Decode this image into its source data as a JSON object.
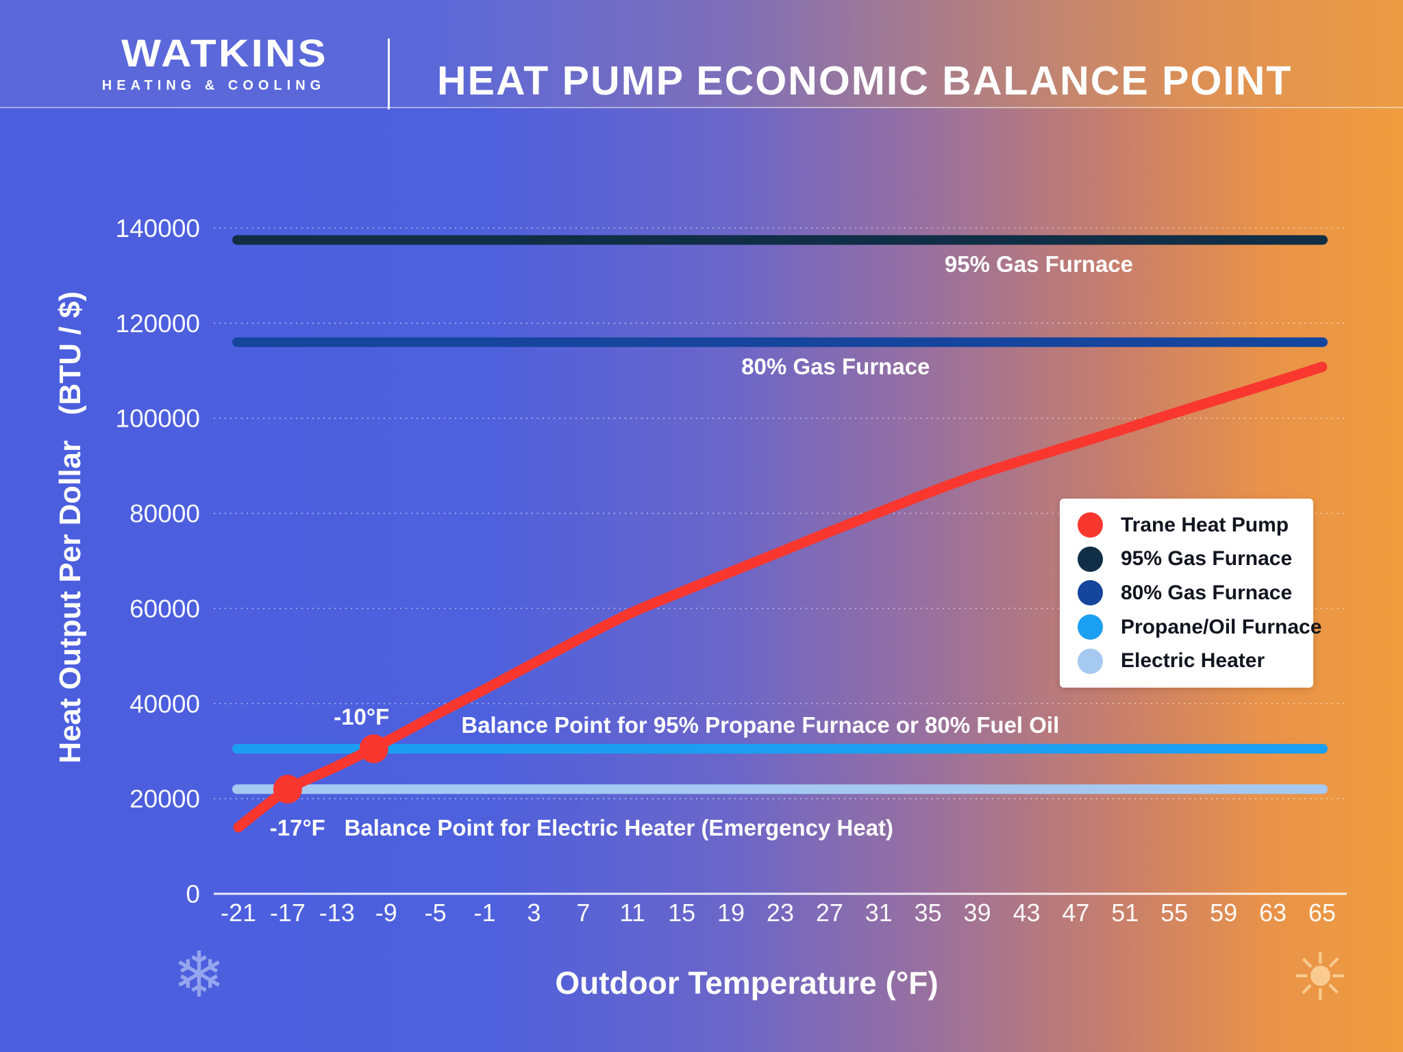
{
  "header": {
    "logo_name": "WATKINS",
    "logo_subtitle": "HEATING & COOLING",
    "title": "HEAT PUMP ECONOMIC BALANCE POINT"
  },
  "axes": {
    "y_title": "Heat Output Per Dollar   (BTU / $)",
    "x_title": "Outdoor Temperature (°F)",
    "y_ticks": [
      0,
      20000,
      40000,
      60000,
      80000,
      100000,
      120000,
      140000
    ],
    "x_ticks": [
      -21,
      -17,
      -13,
      -9,
      -5,
      -1,
      3,
      7,
      11,
      15,
      19,
      23,
      27,
      31,
      35,
      39,
      43,
      47,
      51,
      55,
      59,
      63,
      65
    ],
    "y_max": 140000
  },
  "chart_data": {
    "type": "line",
    "title": "Heat Pump Economic Balance Point",
    "xlabel": "Outdoor Temperature (°F)",
    "ylabel": "Heat Output Per Dollar (BTU / $)",
    "xlim": [
      -21,
      65
    ],
    "ylim": [
      0,
      140000
    ],
    "grid": "dotted horizontal",
    "legend_position": "right",
    "series": [
      {
        "name": "Trane Heat Pump",
        "color": "#f9372f",
        "kind": "curve",
        "points": [
          [
            -21,
            14000
          ],
          [
            -17,
            21900
          ],
          [
            -13,
            26800
          ],
          [
            -9,
            32000
          ],
          [
            -5,
            37600
          ],
          [
            -1,
            43000
          ],
          [
            3,
            48500
          ],
          [
            7,
            54000
          ],
          [
            11,
            59200
          ],
          [
            15,
            63500
          ],
          [
            19,
            67700
          ],
          [
            23,
            71900
          ],
          [
            27,
            76100
          ],
          [
            31,
            80200
          ],
          [
            35,
            84300
          ],
          [
            39,
            88100
          ],
          [
            43,
            91400
          ],
          [
            47,
            94600
          ],
          [
            51,
            97800
          ],
          [
            55,
            101100
          ],
          [
            59,
            104300
          ],
          [
            63,
            107500
          ],
          [
            65,
            110800
          ]
        ]
      },
      {
        "name": "95% Gas Furnace",
        "color": "#102e45",
        "kind": "constant",
        "value": 137500
      },
      {
        "name": "80% Gas Furnace",
        "color": "#15459c",
        "kind": "constant",
        "value": 116000
      },
      {
        "name": "Propane/Oil Furnace",
        "color": "#1b9ff2",
        "kind": "constant",
        "value": 30500
      },
      {
        "name": "Electric Heater",
        "color": "#a5c9f1",
        "kind": "constant",
        "value": 22000
      }
    ],
    "balance_points": [
      {
        "label": "-10°F",
        "temp": -10,
        "value": 30500
      },
      {
        "label": "-17°F",
        "temp": -17,
        "value": 22000
      }
    ]
  },
  "annotations": [
    {
      "text": "95% Gas Furnace",
      "x_temp": 44,
      "y_value": 132500,
      "anchor": "middle"
    },
    {
      "text": "80% Gas Furnace",
      "x_temp": 27.5,
      "y_value": 111000,
      "anchor": "middle"
    },
    {
      "text": "-10°F",
      "x_temp": -11,
      "y_value": 37300,
      "anchor": "middle"
    },
    {
      "text": "Balance Point for 95% Propane Furnace or 80% Fuel Oil",
      "x_temp": -2.9,
      "y_value": 35600,
      "anchor": "start"
    },
    {
      "text": "-17°F",
      "x_temp": -16.2,
      "y_value": 14000,
      "anchor": "middle"
    },
    {
      "text": "Balance Point for Electric Heater (Emergency Heat)",
      "x_temp": -12.4,
      "y_value": 14000,
      "anchor": "start"
    }
  ],
  "legend": {
    "items": [
      {
        "label": "Trane Heat Pump",
        "color": "#f9372f"
      },
      {
        "label": "95% Gas Furnace",
        "color": "#102e45"
      },
      {
        "label": "80% Gas Furnace",
        "color": "#15459c"
      },
      {
        "label": "Propane/Oil Furnace",
        "color": "#1b9ff2"
      },
      {
        "label": "Electric Heater",
        "color": "#a5c9f1"
      }
    ]
  },
  "icons": {
    "snowflake": "❄",
    "sun": "☀"
  }
}
